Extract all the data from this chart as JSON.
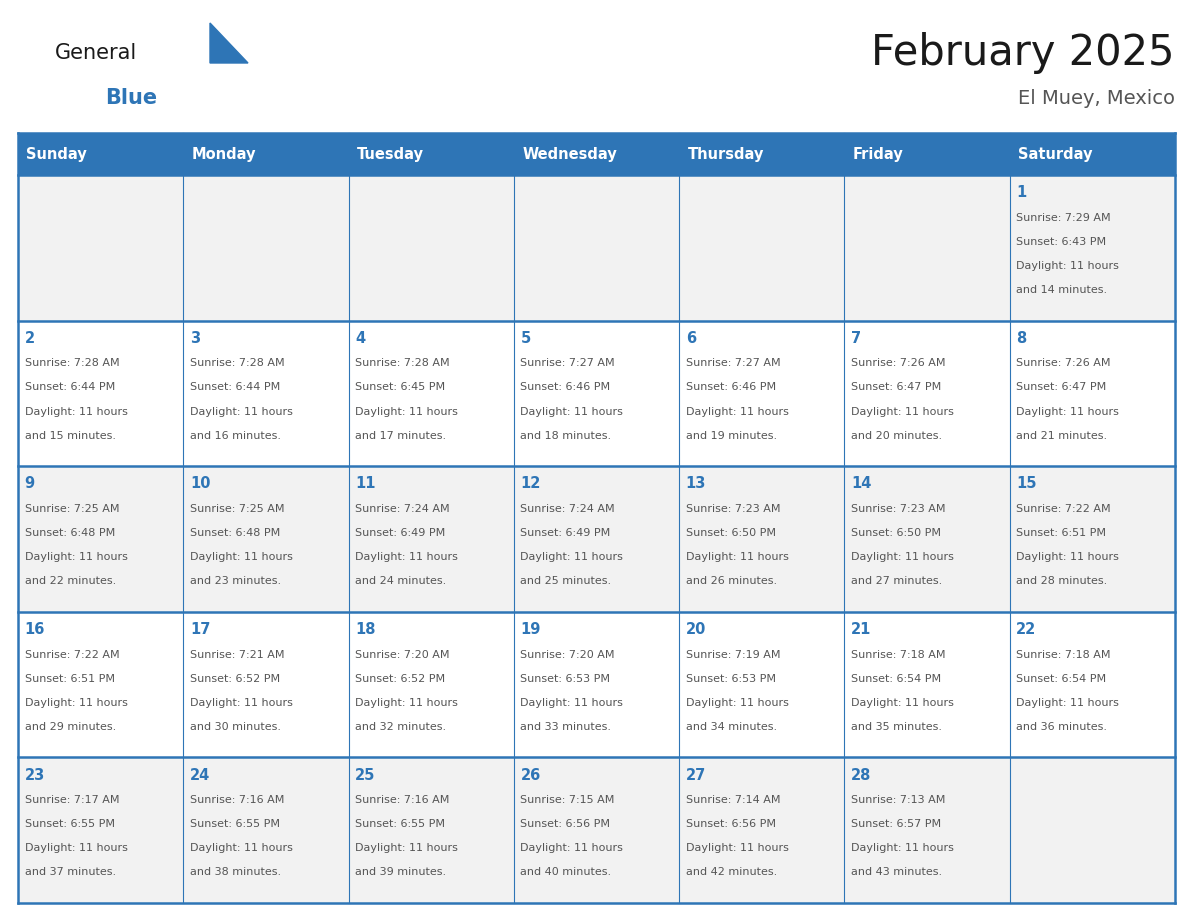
{
  "title": "February 2025",
  "subtitle": "El Muey, Mexico",
  "days_of_week": [
    "Sunday",
    "Monday",
    "Tuesday",
    "Wednesday",
    "Thursday",
    "Friday",
    "Saturday"
  ],
  "header_bg": "#2E75B6",
  "header_text": "#FFFFFF",
  "cell_bg_light": "#F2F2F2",
  "cell_bg_white": "#FFFFFF",
  "border_color": "#2E75B6",
  "day_num_color": "#2E75B6",
  "info_color": "#555555",
  "title_color": "#1a1a1a",
  "subtitle_color": "#555555",
  "logo_general_color": "#1a1a1a",
  "logo_blue_color": "#2E75B6",
  "calendar_data": [
    [
      null,
      null,
      null,
      null,
      null,
      null,
      {
        "day": 1,
        "sunrise": "7:29 AM",
        "sunset": "6:43 PM",
        "daylight": "11 hours and 14 minutes."
      }
    ],
    [
      {
        "day": 2,
        "sunrise": "7:28 AM",
        "sunset": "6:44 PM",
        "daylight": "11 hours and 15 minutes."
      },
      {
        "day": 3,
        "sunrise": "7:28 AM",
        "sunset": "6:44 PM",
        "daylight": "11 hours and 16 minutes."
      },
      {
        "day": 4,
        "sunrise": "7:28 AM",
        "sunset": "6:45 PM",
        "daylight": "11 hours and 17 minutes."
      },
      {
        "day": 5,
        "sunrise": "7:27 AM",
        "sunset": "6:46 PM",
        "daylight": "11 hours and 18 minutes."
      },
      {
        "day": 6,
        "sunrise": "7:27 AM",
        "sunset": "6:46 PM",
        "daylight": "11 hours and 19 minutes."
      },
      {
        "day": 7,
        "sunrise": "7:26 AM",
        "sunset": "6:47 PM",
        "daylight": "11 hours and 20 minutes."
      },
      {
        "day": 8,
        "sunrise": "7:26 AM",
        "sunset": "6:47 PM",
        "daylight": "11 hours and 21 minutes."
      }
    ],
    [
      {
        "day": 9,
        "sunrise": "7:25 AM",
        "sunset": "6:48 PM",
        "daylight": "11 hours and 22 minutes."
      },
      {
        "day": 10,
        "sunrise": "7:25 AM",
        "sunset": "6:48 PM",
        "daylight": "11 hours and 23 minutes."
      },
      {
        "day": 11,
        "sunrise": "7:24 AM",
        "sunset": "6:49 PM",
        "daylight": "11 hours and 24 minutes."
      },
      {
        "day": 12,
        "sunrise": "7:24 AM",
        "sunset": "6:49 PM",
        "daylight": "11 hours and 25 minutes."
      },
      {
        "day": 13,
        "sunrise": "7:23 AM",
        "sunset": "6:50 PM",
        "daylight": "11 hours and 26 minutes."
      },
      {
        "day": 14,
        "sunrise": "7:23 AM",
        "sunset": "6:50 PM",
        "daylight": "11 hours and 27 minutes."
      },
      {
        "day": 15,
        "sunrise": "7:22 AM",
        "sunset": "6:51 PM",
        "daylight": "11 hours and 28 minutes."
      }
    ],
    [
      {
        "day": 16,
        "sunrise": "7:22 AM",
        "sunset": "6:51 PM",
        "daylight": "11 hours and 29 minutes."
      },
      {
        "day": 17,
        "sunrise": "7:21 AM",
        "sunset": "6:52 PM",
        "daylight": "11 hours and 30 minutes."
      },
      {
        "day": 18,
        "sunrise": "7:20 AM",
        "sunset": "6:52 PM",
        "daylight": "11 hours and 32 minutes."
      },
      {
        "day": 19,
        "sunrise": "7:20 AM",
        "sunset": "6:53 PM",
        "daylight": "11 hours and 33 minutes."
      },
      {
        "day": 20,
        "sunrise": "7:19 AM",
        "sunset": "6:53 PM",
        "daylight": "11 hours and 34 minutes."
      },
      {
        "day": 21,
        "sunrise": "7:18 AM",
        "sunset": "6:54 PM",
        "daylight": "11 hours and 35 minutes."
      },
      {
        "day": 22,
        "sunrise": "7:18 AM",
        "sunset": "6:54 PM",
        "daylight": "11 hours and 36 minutes."
      }
    ],
    [
      {
        "day": 23,
        "sunrise": "7:17 AM",
        "sunset": "6:55 PM",
        "daylight": "11 hours and 37 minutes."
      },
      {
        "day": 24,
        "sunrise": "7:16 AM",
        "sunset": "6:55 PM",
        "daylight": "11 hours and 38 minutes."
      },
      {
        "day": 25,
        "sunrise": "7:16 AM",
        "sunset": "6:55 PM",
        "daylight": "11 hours and 39 minutes."
      },
      {
        "day": 26,
        "sunrise": "7:15 AM",
        "sunset": "6:56 PM",
        "daylight": "11 hours and 40 minutes."
      },
      {
        "day": 27,
        "sunrise": "7:14 AM",
        "sunset": "6:56 PM",
        "daylight": "11 hours and 42 minutes."
      },
      {
        "day": 28,
        "sunrise": "7:13 AM",
        "sunset": "6:57 PM",
        "daylight": "11 hours and 43 minutes."
      },
      null
    ]
  ]
}
